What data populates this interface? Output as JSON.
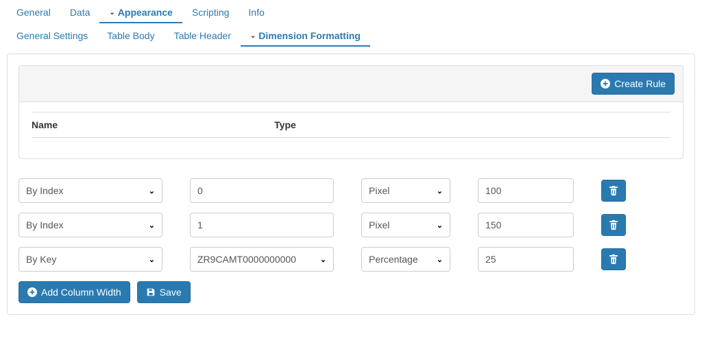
{
  "colors": {
    "primary": "#2a7ab0",
    "border": "#dddddd",
    "text": "#333333",
    "panel_header_bg": "#f5f5f5"
  },
  "tabs_primary": [
    {
      "id": "general",
      "label": "General",
      "active": false,
      "chevron": false
    },
    {
      "id": "data",
      "label": "Data",
      "active": false,
      "chevron": false
    },
    {
      "id": "appearance",
      "label": "Appearance",
      "active": true,
      "chevron": true
    },
    {
      "id": "scripting",
      "label": "Scripting",
      "active": false,
      "chevron": false
    },
    {
      "id": "info",
      "label": "Info",
      "active": false,
      "chevron": false
    }
  ],
  "tabs_secondary": [
    {
      "id": "general-settings",
      "label": "General Settings",
      "active": false,
      "chevron": false
    },
    {
      "id": "table-body",
      "label": "Table Body",
      "active": false,
      "chevron": false
    },
    {
      "id": "table-header",
      "label": "Table Header",
      "active": false,
      "chevron": false
    },
    {
      "id": "dimension-formatting",
      "label": "Dimension Formatting",
      "active": true,
      "chevron": true
    }
  ],
  "rules": {
    "create_label": "Create Rule",
    "columns": {
      "name": "Name",
      "type": "Type"
    },
    "items": []
  },
  "column_widths": {
    "rows": [
      {
        "by": "By Index",
        "index": "0",
        "index_is_select": false,
        "unit": "Pixel",
        "value": "100"
      },
      {
        "by": "By Index",
        "index": "1",
        "index_is_select": false,
        "unit": "Pixel",
        "value": "150"
      },
      {
        "by": "By Key",
        "index": "ZR9CAMT0000000000",
        "index_is_select": true,
        "unit": "Percentage",
        "value": "25"
      }
    ],
    "add_label": "Add Column Width",
    "save_label": "Save"
  }
}
